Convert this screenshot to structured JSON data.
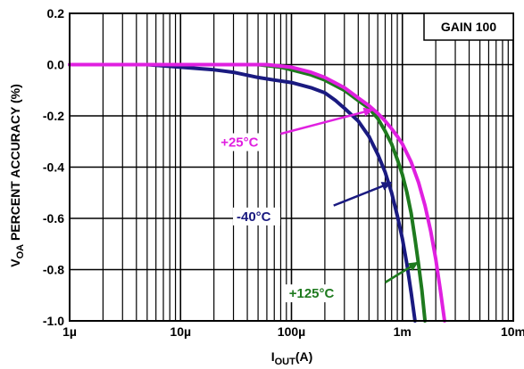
{
  "chart_data": {
    "type": "line",
    "title": "",
    "xlabel_main": "I",
    "xlabel_sub": "OUT",
    "xlabel_suffix": "(A)",
    "ylabel_main": "V",
    "ylabel_sub": "OA",
    "ylabel_suffix": " PERCENT ACCURACY (%)",
    "x_scale": "log",
    "xlim": [
      1e-06,
      0.01
    ],
    "ylim": [
      -1.0,
      0.2
    ],
    "x_ticks": [
      {
        "value": 1e-06,
        "label": "1µ"
      },
      {
        "value": 1e-05,
        "label": "10µ"
      },
      {
        "value": 0.0001,
        "label": "100µ"
      },
      {
        "value": 0.001,
        "label": "1m"
      },
      {
        "value": 0.01,
        "label": "10m"
      }
    ],
    "y_ticks": [
      {
        "value": 0.2,
        "label": "0.2"
      },
      {
        "value": 0.0,
        "label": "0.0"
      },
      {
        "value": -0.2,
        "label": "-0.2"
      },
      {
        "value": -0.4,
        "label": "-0.4"
      },
      {
        "value": -0.6,
        "label": "-0.6"
      },
      {
        "value": -0.8,
        "label": "-0.8"
      },
      {
        "value": -1.0,
        "label": "-1.0"
      }
    ],
    "grid": true,
    "box_label": "GAIN 100",
    "series": [
      {
        "name": "-40°C",
        "color": "#1a1a80",
        "points": [
          [
            1e-06,
            0.0
          ],
          [
            2e-06,
            0.0
          ],
          [
            5e-06,
            0.0
          ],
          [
            1e-05,
            -0.01
          ],
          [
            2e-05,
            -0.02
          ],
          [
            3e-05,
            -0.03
          ],
          [
            5e-05,
            -0.05
          ],
          [
            7e-05,
            -0.06
          ],
          [
            0.0001,
            -0.07
          ],
          [
            0.00015,
            -0.09
          ],
          [
            0.0002,
            -0.11
          ],
          [
            0.00025,
            -0.14
          ],
          [
            0.0003,
            -0.17
          ],
          [
            0.0004,
            -0.22
          ],
          [
            0.0005,
            -0.28
          ],
          [
            0.0006,
            -0.35
          ],
          [
            0.0007,
            -0.42
          ],
          [
            0.0008,
            -0.5
          ],
          [
            0.0009,
            -0.59
          ],
          [
            0.001,
            -0.68
          ],
          [
            0.0011,
            -0.78
          ],
          [
            0.0012,
            -0.89
          ],
          [
            0.0013,
            -1.0
          ]
        ]
      },
      {
        "name": "+125°C",
        "color": "#1e7a1e",
        "points": [
          [
            1e-06,
            0.0
          ],
          [
            1e-05,
            0.0
          ],
          [
            3e-05,
            0.0
          ],
          [
            5e-05,
            0.0
          ],
          [
            8e-05,
            -0.01
          ],
          [
            0.0001,
            -0.02
          ],
          [
            0.00015,
            -0.04
          ],
          [
            0.0002,
            -0.06
          ],
          [
            0.0003,
            -0.1
          ],
          [
            0.0004,
            -0.14
          ],
          [
            0.0005,
            -0.17
          ],
          [
            0.0006,
            -0.21
          ],
          [
            0.0007,
            -0.26
          ],
          [
            0.0008,
            -0.31
          ],
          [
            0.0009,
            -0.37
          ],
          [
            0.001,
            -0.43
          ],
          [
            0.0011,
            -0.5
          ],
          [
            0.0012,
            -0.58
          ],
          [
            0.0013,
            -0.68
          ],
          [
            0.0014,
            -0.78
          ],
          [
            0.0015,
            -0.88
          ],
          [
            0.0016,
            -1.0
          ]
        ]
      },
      {
        "name": "+25°C",
        "color": "#e020e0",
        "points": [
          [
            1e-06,
            0.0
          ],
          [
            1e-05,
            0.0
          ],
          [
            3e-05,
            0.0
          ],
          [
            6e-05,
            0.0
          ],
          [
            0.0001,
            -0.01
          ],
          [
            0.00015,
            -0.03
          ],
          [
            0.0002,
            -0.05
          ],
          [
            0.0003,
            -0.09
          ],
          [
            0.0004,
            -0.13
          ],
          [
            0.0005,
            -0.16
          ],
          [
            0.0006,
            -0.19
          ],
          [
            0.0007,
            -0.22
          ],
          [
            0.0008,
            -0.25
          ],
          [
            0.0009,
            -0.28
          ],
          [
            0.001,
            -0.31
          ],
          [
            0.0012,
            -0.38
          ],
          [
            0.0014,
            -0.46
          ],
          [
            0.0016,
            -0.55
          ],
          [
            0.0018,
            -0.65
          ],
          [
            0.002,
            -0.76
          ],
          [
            0.0022,
            -0.88
          ],
          [
            0.0024,
            -1.0
          ]
        ]
      }
    ],
    "annotations": [
      {
        "text": "+25°C",
        "color": "#e020e0",
        "text_at": [
          2.3e-05,
          -0.32
        ],
        "arrow_from": [
          8e-05,
          -0.27
        ],
        "arrow_to": [
          0.00055,
          -0.175
        ]
      },
      {
        "text": "-40°C",
        "color": "#1a1a80",
        "text_at": [
          3.2e-05,
          -0.61
        ],
        "arrow_from": [
          0.00024,
          -0.55
        ],
        "arrow_to": [
          0.0008,
          -0.46
        ]
      },
      {
        "text": "+125°C",
        "color": "#1e7a1e",
        "text_at": [
          9.5e-05,
          -0.91
        ],
        "arrow_from": [
          0.0007,
          -0.85
        ],
        "arrow_to": [
          0.0014,
          -0.77
        ]
      }
    ]
  }
}
